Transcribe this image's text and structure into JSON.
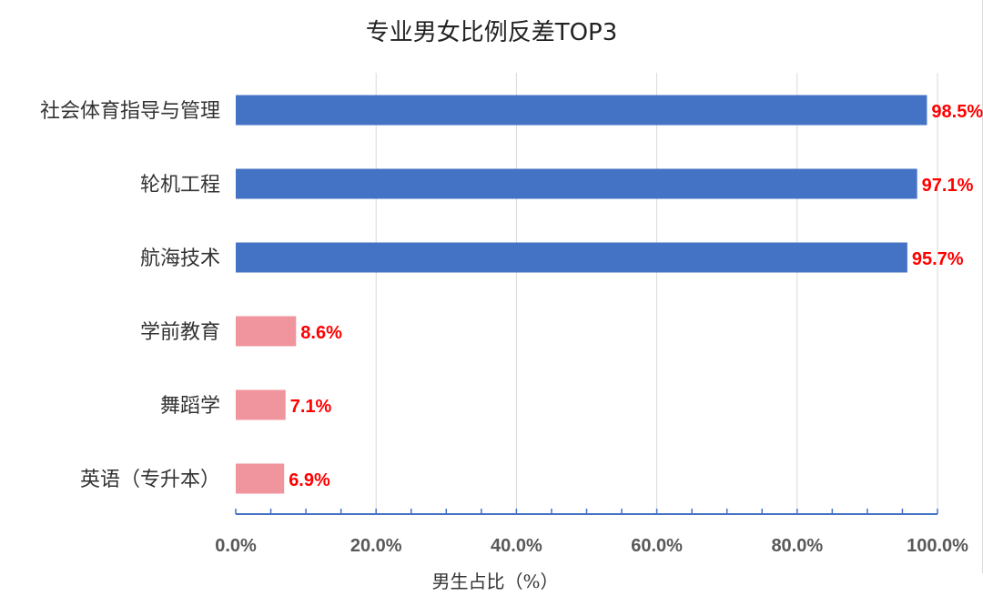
{
  "chart_data": {
    "type": "bar",
    "orientation": "horizontal",
    "title": "专业男女比例反差TOP3",
    "xlabel": "男生占比（%）",
    "ylabel": "",
    "xlim": [
      0,
      100
    ],
    "x_ticks": [
      "0.0%",
      "20.0%",
      "40.0%",
      "60.0%",
      "80.0%",
      "100.0%"
    ],
    "x_tick_values": [
      0,
      20,
      40,
      60,
      80,
      100
    ],
    "grid": "vertical",
    "categories": [
      "社会体育指导与管理",
      "轮机工程",
      "航海技术",
      "学前教育",
      "舞蹈学",
      "英语（专升本）"
    ],
    "values": [
      98.5,
      97.1,
      95.7,
      8.6,
      7.1,
      6.9
    ],
    "data_labels": [
      "98.5%",
      "97.1%",
      "95.7%",
      "8.6%",
      "7.1%",
      "6.9%"
    ],
    "bar_colors": [
      "#4472C4",
      "#4472C4",
      "#4472C4",
      "#F0959E",
      "#F0959E",
      "#F0959E"
    ],
    "label_color": "#FF0000",
    "axis_color": "#4472C4",
    "grid_color": "#D9D9D9"
  }
}
